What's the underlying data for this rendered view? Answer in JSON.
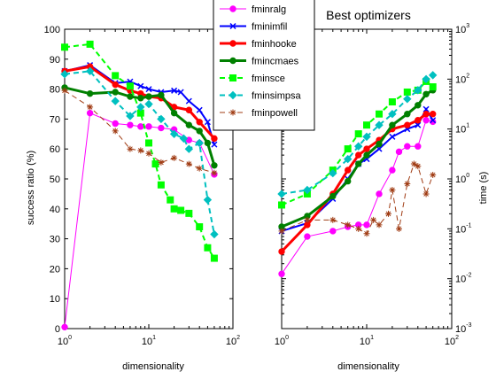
{
  "chart_data": [
    {
      "type": "line",
      "title": "",
      "xlabel": "dimensionality",
      "ylabel": "success ratio (%)",
      "xscale": "log",
      "xlim": [
        1,
        100
      ],
      "ylim": [
        0,
        100
      ],
      "yticks": [
        0,
        10,
        20,
        30,
        40,
        50,
        60,
        70,
        80,
        90,
        100
      ],
      "xticks": [
        {
          "base": "10",
          "exp": "0"
        },
        {
          "base": "10",
          "exp": "1"
        },
        {
          "base": "10",
          "exp": "2"
        }
      ],
      "series": [
        {
          "name": "fminralg",
          "color": "#ff00ff",
          "marker": "o",
          "dash": "",
          "width": 1,
          "x": [
            1,
            2,
            4,
            6,
            8,
            10,
            14,
            20,
            30,
            40,
            60
          ],
          "y": [
            0.5,
            72,
            68.5,
            68,
            67.5,
            67.5,
            67,
            66.5,
            63,
            62,
            51.5
          ]
        },
        {
          "name": "fminimfil",
          "color": "#0000ff",
          "marker": "x",
          "dash": "",
          "width": 2,
          "x": [
            1,
            2,
            4,
            6,
            8,
            10,
            14,
            20,
            24,
            30,
            40,
            50,
            60
          ],
          "y": [
            86,
            88,
            82,
            82.5,
            81,
            80,
            79,
            79.5,
            79,
            76,
            73,
            69,
            61.5
          ]
        },
        {
          "name": "fminhooke",
          "color": "#ff0000",
          "marker": "o",
          "dash": "",
          "width": 3,
          "x": [
            1,
            2,
            4,
            6,
            8,
            10,
            14,
            20,
            30,
            40,
            60
          ],
          "y": [
            86,
            87.5,
            81.5,
            79.5,
            78.5,
            77.5,
            77,
            74,
            73,
            69,
            63.5
          ]
        },
        {
          "name": "fmincmaes",
          "color": "#008000",
          "marker": "o",
          "dash": "",
          "width": 3,
          "x": [
            1,
            2,
            4,
            6,
            8,
            10,
            14,
            20,
            30,
            40,
            50,
            60
          ],
          "y": [
            80.5,
            78.5,
            79,
            77.5,
            77,
            77.5,
            78,
            72,
            68,
            66,
            62,
            54.5
          ]
        },
        {
          "name": "fminsce",
          "color": "#00ff00",
          "marker": "s",
          "dash": "6,4",
          "width": 2,
          "x": [
            1,
            2,
            4,
            6,
            8,
            10,
            12,
            14,
            18,
            20,
            24,
            30,
            40,
            50,
            60
          ],
          "y": [
            94,
            95,
            84.5,
            81,
            72,
            62,
            55,
            48,
            43,
            40,
            39.5,
            38.5,
            34,
            27,
            23.5
          ]
        },
        {
          "name": "fminsimpsa",
          "color": "#00c0c0",
          "marker": "d",
          "dash": "6,4",
          "width": 2,
          "x": [
            1,
            2,
            4,
            6,
            8,
            10,
            14,
            20,
            26,
            30,
            40,
            50,
            60
          ],
          "y": [
            85,
            86,
            76,
            71,
            74,
            75,
            70,
            65,
            63.5,
            60,
            62,
            43,
            31.5
          ]
        },
        {
          "name": "fminpowell",
          "color": "#a03c14",
          "marker": "*",
          "dash": "6,4",
          "width": 1,
          "x": [
            1,
            2,
            4,
            6,
            8,
            10,
            14,
            20,
            30,
            40,
            60
          ],
          "y": [
            79.5,
            74,
            66,
            60,
            59.5,
            58.5,
            55.5,
            57,
            55,
            53.5,
            52
          ]
        }
      ]
    },
    {
      "type": "line",
      "title": "Best optimizers",
      "xlabel": "dimensionality",
      "ylabel": "time (s)",
      "xscale": "log",
      "yscale": "log",
      "xlim": [
        1,
        100
      ],
      "ylim": [
        0.001,
        1000
      ],
      "xticks": [
        {
          "base": "10",
          "exp": "0"
        },
        {
          "base": "10",
          "exp": "1"
        },
        {
          "base": "10",
          "exp": "2"
        }
      ],
      "yticks": [
        {
          "base": "10",
          "exp": "-3"
        },
        {
          "base": "10",
          "exp": "-2"
        },
        {
          "base": "10",
          "exp": "-1"
        },
        {
          "base": "10",
          "exp": "0"
        },
        {
          "base": "10",
          "exp": "1"
        },
        {
          "base": "10",
          "exp": "2"
        },
        {
          "base": "10",
          "exp": "3"
        }
      ],
      "series": [
        {
          "name": "fminralg",
          "color": "#ff00ff",
          "marker": "o",
          "dash": "",
          "width": 1,
          "x": [
            1,
            2,
            4,
            6,
            8,
            10,
            14,
            20,
            24,
            30,
            40,
            50,
            60
          ],
          "y": [
            0.0125,
            0.07,
            0.09,
            0.11,
            0.12,
            0.12,
            0.5,
            1.5,
            3.5,
            4.5,
            4.5,
            15,
            14
          ]
        },
        {
          "name": "fminimfil",
          "color": "#0000ff",
          "marker": "x",
          "dash": "",
          "width": 2,
          "x": [
            1,
            2,
            4,
            6,
            8,
            10,
            14,
            20,
            30,
            40,
            50,
            60
          ],
          "y": [
            0.09,
            0.13,
            0.4,
            1.0,
            2.0,
            2.5,
            4.0,
            7.0,
            10,
            12,
            25,
            15
          ]
        },
        {
          "name": "fminhooke",
          "color": "#ff0000",
          "marker": "o",
          "dash": "",
          "width": 3,
          "x": [
            1,
            2,
            4,
            6,
            8,
            10,
            14,
            20,
            30,
            40,
            50,
            60
          ],
          "y": [
            0.035,
            0.12,
            0.5,
            1.5,
            3.0,
            4.0,
            6.0,
            10,
            12,
            15,
            20,
            20
          ]
        },
        {
          "name": "fmincmaes",
          "color": "#008000",
          "marker": "o",
          "dash": "",
          "width": 3,
          "x": [
            1,
            2,
            4,
            6,
            8,
            10,
            14,
            20,
            30,
            40,
            50,
            60
          ],
          "y": [
            0.11,
            0.18,
            0.45,
            0.9,
            2.0,
            3.0,
            5.0,
            12,
            20,
            30,
            50,
            60
          ]
        },
        {
          "name": "fminsce",
          "color": "#00ff00",
          "marker": "s",
          "dash": "6,4",
          "width": 2,
          "x": [
            1,
            2,
            4,
            6,
            8,
            10,
            14,
            20,
            30,
            40,
            50,
            60
          ],
          "y": [
            0.3,
            0.5,
            1.5,
            4.0,
            8.0,
            12,
            20,
            35,
            55,
            60,
            90,
            70
          ]
        },
        {
          "name": "fminsimpsa",
          "color": "#00c0c0",
          "marker": "d",
          "dash": "6,4",
          "width": 2,
          "x": [
            1,
            2,
            4,
            6,
            8,
            10,
            14,
            20,
            30,
            40,
            50,
            60
          ],
          "y": [
            0.5,
            0.6,
            1.3,
            2.5,
            4.5,
            7.0,
            12,
            20,
            40,
            60,
            100,
            120
          ]
        },
        {
          "name": "fminpowell",
          "color": "#a03c14",
          "marker": "*",
          "dash": "6,4",
          "width": 1,
          "x": [
            1,
            2,
            4,
            6,
            8,
            10,
            12,
            14,
            18,
            20,
            24,
            30,
            36,
            40,
            50,
            60
          ],
          "y": [
            0.09,
            0.15,
            0.15,
            0.12,
            0.1,
            0.08,
            0.15,
            0.12,
            0.2,
            0.6,
            0.1,
            0.8,
            2.0,
            1.8,
            0.5,
            1.2
          ]
        }
      ]
    }
  ]
}
